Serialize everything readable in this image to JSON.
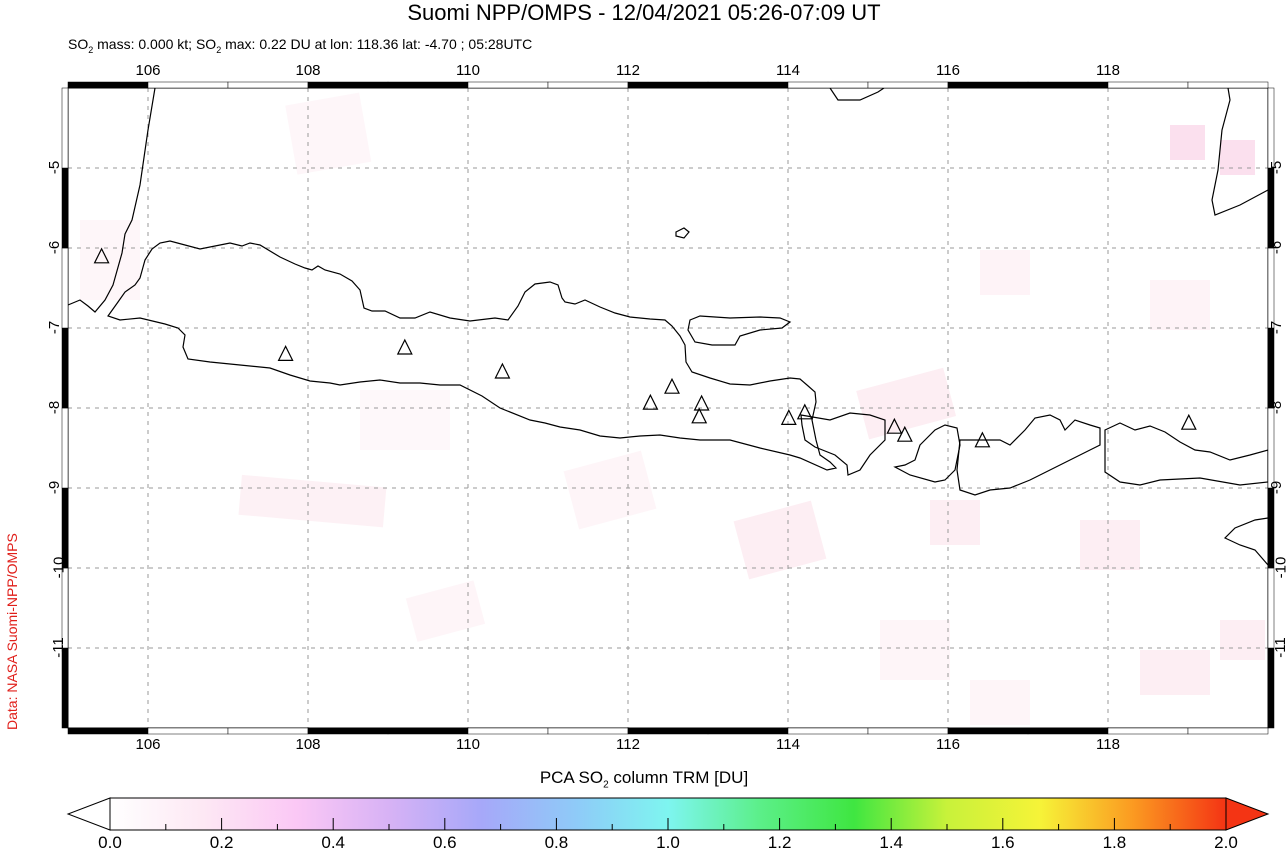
{
  "header": {
    "title": "Suomi NPP/OMPS - 12/04/2021 05:26-07:09 UT",
    "subtitle_parts": [
      "SO",
      "2",
      " mass: 0.000 kt; SO",
      "2",
      " max: 0.22 DU at lon: 118.36 lat: -4.70 ; 05:28UTC"
    ]
  },
  "credit": "Data: NASA Suomi-NPP/OMPS",
  "map": {
    "lon_range": [
      105,
      120
    ],
    "lat_range": [
      -12,
      -4
    ],
    "lon_ticks": [
      "106",
      "108",
      "110",
      "112",
      "114",
      "116",
      "118"
    ],
    "lat_ticks": [
      "-5",
      "-6",
      "-7",
      "-8",
      "-9",
      "-10",
      "-11"
    ],
    "grid": true,
    "volcanoes": [
      [
        105.42,
        -6.11
      ],
      [
        107.72,
        -7.33
      ],
      [
        109.21,
        -7.25
      ],
      [
        110.43,
        -7.55
      ],
      [
        112.28,
        -7.94
      ],
      [
        112.55,
        -7.74
      ],
      [
        112.92,
        -7.95
      ],
      [
        112.89,
        -8.11
      ],
      [
        114.01,
        -8.13
      ],
      [
        114.21,
        -8.06
      ],
      [
        115.33,
        -8.24
      ],
      [
        115.46,
        -8.34
      ],
      [
        116.43,
        -8.41
      ],
      [
        119.01,
        -8.19
      ]
    ]
  },
  "colorbar": {
    "title_parts": [
      "PCA SO",
      "2",
      " column TRM [DU]"
    ],
    "range": [
      0,
      2
    ],
    "labels": [
      "0.0",
      "0.2",
      "0.4",
      "0.6",
      "0.8",
      "1.0",
      "1.2",
      "1.4",
      "1.6",
      "1.8",
      "2.0"
    ],
    "colors": [
      "#ffffff",
      "#fde8f4",
      "#fbc8f5",
      "#d7b2f5",
      "#a6a8f9",
      "#8fcaf8",
      "#7ef5f0",
      "#5bef88",
      "#3fe641",
      "#c8f23a",
      "#f6f338",
      "#fb9a21",
      "#f43414"
    ]
  }
}
